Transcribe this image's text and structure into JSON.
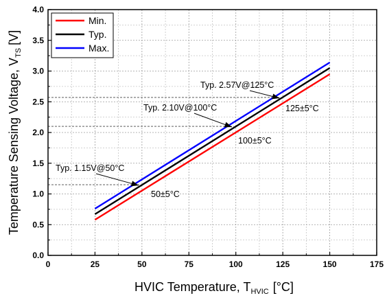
{
  "chart_data": {
    "type": "line",
    "xlabel": {
      "main": "HVIC Temperature, T",
      "sub": "HVIC",
      "unit": "[°C]"
    },
    "ylabel": {
      "main": "Temperature Sensing Voltage, V",
      "sub": "TS",
      "unit": "[V]"
    },
    "xlim": [
      0,
      175
    ],
    "ylim": [
      0.0,
      4.0
    ],
    "xticks": [
      0,
      25,
      50,
      75,
      100,
      125,
      150,
      175
    ],
    "xtick_labels": [
      "0",
      "25",
      "50",
      "75",
      "100",
      "125",
      "150",
      "175"
    ],
    "yticks": [
      0.0,
      0.5,
      1.0,
      1.5,
      2.0,
      2.5,
      3.0,
      3.5,
      4.0
    ],
    "ytick_labels": [
      "0.0",
      "0.5",
      "1.0",
      "1.5",
      "2.0",
      "2.5",
      "3.0",
      "3.5",
      "4.0"
    ],
    "grid": true,
    "legend_position": "top-left",
    "series": [
      {
        "name": "Min.",
        "color": "#ff0000",
        "x": [
          25,
          150
        ],
        "y": [
          0.58,
          2.95
        ]
      },
      {
        "name": "Typ.",
        "color": "#000000",
        "x": [
          25,
          150
        ],
        "y": [
          0.67,
          3.05
        ]
      },
      {
        "name": "Max.",
        "color": "#0000ff",
        "x": [
          25,
          150
        ],
        "y": [
          0.76,
          3.14
        ]
      }
    ],
    "annotations": [
      {
        "text": "Typ. 1.15V@50°C",
        "x": 50,
        "y": 1.15
      },
      {
        "text": "50±5°C",
        "x": 50,
        "y": 1.15
      },
      {
        "text": "Typ. 2.10V@100°C",
        "x": 100,
        "y": 2.1
      },
      {
        "text": "100±5°C",
        "x": 100,
        "y": 2.1
      },
      {
        "text": "Typ. 2.57V@125°C",
        "x": 125,
        "y": 2.57
      },
      {
        "text": "125±5°C",
        "x": 125,
        "y": 2.57
      }
    ]
  }
}
